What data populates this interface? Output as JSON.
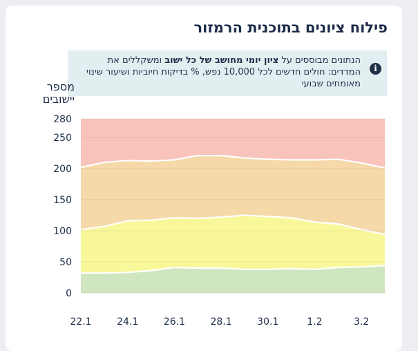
{
  "title": "פילוח ציונים בתוכנית הרמזור",
  "note": {
    "icon": "info-icon",
    "prefix": "הנתונים מבוססים על ",
    "bold": "ציון יומי מחושב של כל ישוב",
    "suffix": " ומשקללים את המדדים: חולים חדשים לכל 10,000 נפש, % בדיקות חיוביות ושיעור שינוי מאומתים שבועי"
  },
  "chart_data": {
    "type": "area",
    "stacked": true,
    "ylabel": "מספר יישובים",
    "ylim": [
      0,
      280
    ],
    "yticks": [
      0,
      50,
      100,
      150,
      200,
      250,
      280
    ],
    "xtick_labels": [
      "22.1",
      "24.1",
      "26.1",
      "28.1",
      "30.1",
      "1.2",
      "3.2"
    ],
    "x": [
      "22.1",
      "23.1",
      "24.1",
      "25.1",
      "26.1",
      "27.1",
      "28.1",
      "29.1",
      "30.1",
      "31.1",
      "1.2",
      "2.2",
      "3.2",
      "4.2"
    ],
    "series": [
      {
        "color": "#cfe6c0",
        "values": [
          32,
          32,
          33,
          36,
          41,
          40,
          40,
          38,
          38,
          39,
          38,
          41,
          42,
          44
        ]
      },
      {
        "color": "#f8f79a",
        "values": [
          70,
          75,
          83,
          81,
          80,
          80,
          82,
          87,
          85,
          82,
          76,
          70,
          60,
          50
        ]
      },
      {
        "color": "#f5d9a8",
        "values": [
          100,
          103,
          97,
          95,
          93,
          101,
          99,
          92,
          92,
          93,
          100,
          104,
          107,
          107
        ]
      },
      {
        "color": "#f8c3bb",
        "values": [
          78,
          70,
          67,
          68,
          66,
          59,
          59,
          63,
          65,
          66,
          66,
          65,
          71,
          79
        ]
      }
    ]
  }
}
